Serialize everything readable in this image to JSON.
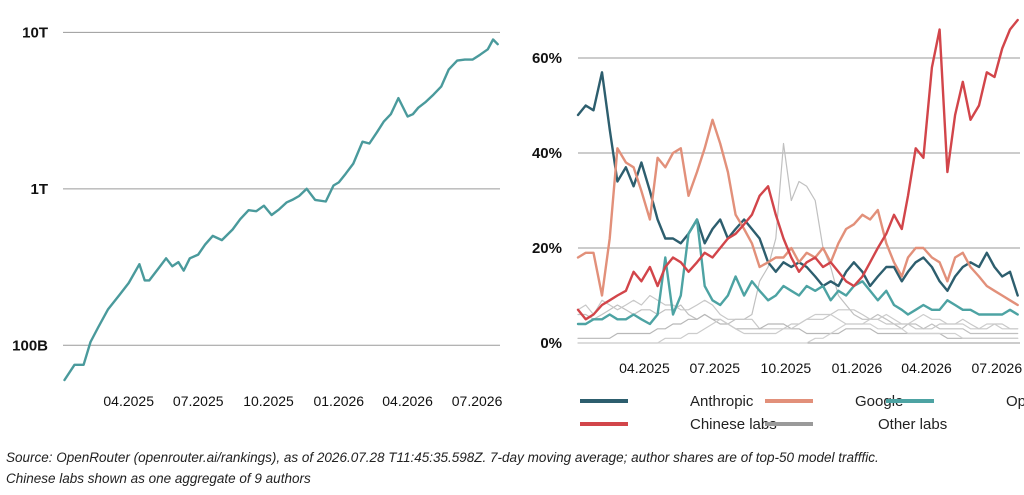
{
  "source_note": {
    "line1": "Source: OpenRouter (openrouter.ai/rankings), as of 2026.07.28 T11:45:35.598Z. 7-day moving average; author shares are of top-50 model trafffic.",
    "line2": "Chinese labs shown as one aggregate of 9 authors"
  },
  "chart_data": [
    {
      "type": "line",
      "title": "",
      "xlabel": "",
      "ylabel": "",
      "yscale": "log",
      "ylim": [
        60000000000,
        12000000000000
      ],
      "yticks": [
        {
          "value": 100000000000,
          "label": "100B"
        },
        {
          "value": 1000000000000,
          "label": "1T"
        },
        {
          "value": 10000000000000,
          "label": "10T"
        }
      ],
      "xlim": [
        "2025-01-05",
        "2026-07-31"
      ],
      "xticks": [
        {
          "value": "2025-04-01",
          "label": "04.2025"
        },
        {
          "value": "2025-07-01",
          "label": "07.2025"
        },
        {
          "value": "2025-10-01",
          "label": "10.2025"
        },
        {
          "value": "2026-01-01",
          "label": "01.2026"
        },
        {
          "value": "2026-04-01",
          "label": "04.2026"
        },
        {
          "value": "2026-07-01",
          "label": "07.2026"
        }
      ],
      "grid": true,
      "color": "#4a9a9c",
      "x": [
        "2025-01-07",
        "2025-01-20",
        "2025-02-01",
        "2025-02-10",
        "2025-02-20",
        "2025-03-05",
        "2025-03-20",
        "2025-04-01",
        "2025-04-15",
        "2025-04-22",
        "2025-04-28",
        "2025-05-10",
        "2025-05-20",
        "2025-05-28",
        "2025-06-05",
        "2025-06-12",
        "2025-06-20",
        "2025-07-01",
        "2025-07-10",
        "2025-07-20",
        "2025-08-01",
        "2025-08-15",
        "2025-08-25",
        "2025-09-05",
        "2025-09-15",
        "2025-09-25",
        "2025-10-05",
        "2025-10-15",
        "2025-10-25",
        "2025-11-01",
        "2025-11-10",
        "2025-11-20",
        "2025-12-01",
        "2025-12-15",
        "2025-12-25",
        "2026-01-01",
        "2026-01-10",
        "2026-01-20",
        "2026-02-01",
        "2026-02-10",
        "2026-02-20",
        "2026-03-01",
        "2026-03-10",
        "2026-03-20",
        "2026-04-01",
        "2026-04-08",
        "2026-04-15",
        "2026-04-25",
        "2026-05-05",
        "2026-05-15",
        "2026-05-25",
        "2026-06-05",
        "2026-06-15",
        "2026-06-25",
        "2026-07-05",
        "2026-07-15",
        "2026-07-22",
        "2026-07-28"
      ],
      "values": [
        60000000000,
        75000000000,
        75000000000,
        105000000000,
        130000000000,
        170000000000,
        210000000000,
        250000000000,
        330000000000,
        260000000000,
        260000000000,
        310000000000,
        360000000000,
        320000000000,
        340000000000,
        300000000000,
        360000000000,
        380000000000,
        440000000000,
        500000000000,
        470000000000,
        550000000000,
        640000000000,
        730000000000,
        720000000000,
        780000000000,
        680000000000,
        740000000000,
        820000000000,
        850000000000,
        900000000000,
        1000000000000,
        850000000000,
        830000000000,
        1050000000000,
        1100000000000,
        1250000000000,
        1450000000000,
        2000000000000,
        1950000000000,
        2300000000000,
        2700000000000,
        3000000000000,
        3800000000000,
        2900000000000,
        3000000000000,
        3300000000000,
        3600000000000,
        4000000000000,
        4500000000000,
        5800000000000,
        6600000000000,
        6700000000000,
        6700000000000,
        7200000000000,
        7800000000000,
        9000000000000,
        8400000000000
      ]
    },
    {
      "type": "line",
      "title": "",
      "xlabel": "",
      "ylabel": "",
      "ylim": [
        0,
        68
      ],
      "yticks": [
        {
          "value": 0,
          "label": "0%"
        },
        {
          "value": 20,
          "label": "20%"
        },
        {
          "value": 40,
          "label": "40%"
        },
        {
          "value": 60,
          "label": "60%"
        }
      ],
      "xlim": [
        "2025-01-05",
        "2026-07-31"
      ],
      "xticks": [
        {
          "value": "2025-04-01",
          "label": "04.2025"
        },
        {
          "value": "2025-07-01",
          "label": "07.2025"
        },
        {
          "value": "2025-10-01",
          "label": "10.2025"
        },
        {
          "value": "2026-01-01",
          "label": "01.2026"
        },
        {
          "value": "2026-04-01",
          "label": "04.2026"
        },
        {
          "value": "2026-07-01",
          "label": "07.2026"
        }
      ],
      "grid": true,
      "legend": {
        "placement": "bottom",
        "entries": [
          {
            "name": "Anthropic",
            "color": "#2d5e6e"
          },
          {
            "name": "Google",
            "color": "#e2907a"
          },
          {
            "name": "OpenAI",
            "color": "#4da3a3"
          },
          {
            "name": "Chinese labs",
            "color": "#d2454a"
          },
          {
            "name": "Other labs",
            "color": "#9a9a9a"
          }
        ]
      },
      "x": [
        "2025-01-05",
        "2025-01-15",
        "2025-01-25",
        "2025-02-05",
        "2025-02-15",
        "2025-02-25",
        "2025-03-08",
        "2025-03-18",
        "2025-03-28",
        "2025-04-08",
        "2025-04-18",
        "2025-04-28",
        "2025-05-08",
        "2025-05-18",
        "2025-05-28",
        "2025-06-08",
        "2025-06-18",
        "2025-06-28",
        "2025-07-08",
        "2025-07-18",
        "2025-07-28",
        "2025-08-08",
        "2025-08-18",
        "2025-08-28",
        "2025-09-08",
        "2025-09-18",
        "2025-09-28",
        "2025-10-08",
        "2025-10-18",
        "2025-10-28",
        "2025-11-08",
        "2025-11-18",
        "2025-11-28",
        "2025-12-08",
        "2025-12-18",
        "2025-12-28",
        "2026-01-08",
        "2026-01-18",
        "2026-01-28",
        "2026-02-08",
        "2026-02-18",
        "2026-02-28",
        "2026-03-08",
        "2026-03-18",
        "2026-03-28",
        "2026-04-08",
        "2026-04-18",
        "2026-04-28",
        "2026-05-08",
        "2026-05-18",
        "2026-05-28",
        "2026-06-08",
        "2026-06-18",
        "2026-06-28",
        "2026-07-08",
        "2026-07-18",
        "2026-07-28"
      ],
      "series": [
        {
          "name": "Anthropic",
          "color": "#2d5e6e",
          "values": [
            48,
            50,
            49,
            57,
            45,
            34,
            37,
            33,
            38,
            32,
            26,
            22,
            22,
            21,
            23,
            26,
            21,
            24,
            26,
            22,
            24,
            26,
            24,
            22,
            17,
            15,
            17,
            16,
            17,
            16,
            14,
            12,
            13,
            12,
            15,
            17,
            15,
            12,
            14,
            16,
            16,
            13,
            15,
            17,
            18,
            16,
            13,
            11,
            14,
            16,
            17,
            16,
            19,
            16,
            14,
            15,
            10
          ]
        },
        {
          "name": "Google",
          "color": "#e2907a",
          "values": [
            18,
            19,
            19,
            10,
            22,
            41,
            38,
            37,
            32,
            26,
            39,
            37,
            40,
            41,
            31,
            36,
            41,
            47,
            42,
            36,
            27,
            24,
            21,
            16,
            17,
            18,
            18,
            20,
            17,
            19,
            18,
            20,
            17,
            21,
            24,
            25,
            27,
            26,
            28,
            21,
            17,
            14,
            18,
            20,
            20,
            18,
            17,
            13,
            18,
            19,
            16,
            14,
            12,
            11,
            10,
            9,
            8
          ]
        },
        {
          "name": "OpenAI",
          "color": "#4da3a3",
          "values": [
            4,
            4,
            5,
            5,
            6,
            5,
            5,
            6,
            5,
            4,
            6,
            18,
            6,
            10,
            23,
            26,
            12,
            9,
            8,
            10,
            14,
            10,
            13,
            11,
            9,
            10,
            12,
            11,
            10,
            12,
            11,
            12,
            9,
            11,
            10,
            12,
            13,
            11,
            9,
            11,
            8,
            7,
            6,
            7,
            8,
            7,
            7,
            9,
            8,
            7,
            7,
            6,
            6,
            6,
            6,
            7,
            6
          ]
        },
        {
          "name": "Chinese labs",
          "color": "#d2454a",
          "values": [
            7,
            5,
            6,
            8,
            9,
            10,
            11,
            15,
            13,
            16,
            12,
            16,
            18,
            17,
            15,
            17,
            19,
            18,
            20,
            22,
            23,
            25,
            27,
            31,
            33,
            27,
            22,
            18,
            15,
            17,
            18,
            16,
            17,
            15,
            13,
            12,
            14,
            17,
            20,
            23,
            27,
            24,
            31,
            41,
            39,
            58,
            66,
            36,
            48,
            55,
            47,
            50,
            57,
            56,
            62,
            66,
            68
          ]
        },
        {
          "name": "Other labs 1",
          "color": "#c0c0c0",
          "values": [
            6,
            6,
            5,
            6,
            7,
            8,
            7,
            6,
            7,
            7,
            6,
            7,
            7,
            8,
            6,
            5,
            6,
            5,
            5,
            4,
            5,
            5,
            6,
            13,
            16,
            22,
            42,
            30,
            34,
            33,
            30,
            20,
            16,
            10,
            8,
            6,
            5,
            5,
            6,
            5,
            4,
            3,
            4,
            4,
            3,
            4,
            3,
            3,
            3,
            3,
            2,
            2,
            2,
            2,
            2,
            2,
            2
          ]
        },
        {
          "name": "Other labs 2",
          "color": "#c8c8c8",
          "values": [
            7,
            8,
            6,
            9,
            8,
            7,
            8,
            9,
            8,
            10,
            9,
            8,
            8,
            7,
            7,
            8,
            9,
            8,
            6,
            5,
            5,
            5,
            5,
            3,
            3,
            3,
            3,
            4,
            4,
            5,
            5,
            5,
            6,
            7,
            7,
            7,
            6,
            5,
            5,
            4,
            4,
            4,
            4,
            3,
            3,
            3,
            4,
            4,
            4,
            5,
            4,
            3,
            3,
            4,
            4,
            3,
            3
          ]
        },
        {
          "name": "Other labs 3",
          "color": "#b8b8b8",
          "values": [
            1,
            1,
            1,
            1,
            1,
            2,
            2,
            2,
            2,
            2,
            3,
            3,
            4,
            4,
            5,
            5,
            6,
            5,
            4,
            4,
            3,
            3,
            3,
            3,
            4,
            4,
            4,
            3,
            3,
            2,
            2,
            2,
            2,
            2,
            3,
            3,
            3,
            3,
            2,
            2,
            2,
            2,
            2,
            2,
            2,
            2,
            2,
            1,
            1,
            1,
            1,
            1,
            1,
            1,
            1,
            1,
            1
          ]
        },
        {
          "name": "Other labs 4",
          "color": "#cccccc",
          "values": [
            0,
            0,
            0,
            0,
            0,
            0,
            0,
            0,
            0,
            0,
            0,
            1,
            1,
            1,
            2,
            2,
            3,
            4,
            5,
            4,
            3,
            2,
            2,
            2,
            2,
            2,
            3,
            3,
            4,
            5,
            6,
            6,
            6,
            5,
            4,
            4,
            4,
            5,
            5,
            6,
            5,
            4,
            4,
            5,
            6,
            5,
            5,
            4,
            4,
            4,
            3,
            3,
            4,
            4,
            3,
            3,
            3
          ]
        },
        {
          "name": "Other labs 5",
          "color": "#d0d0d0",
          "values": [
            0,
            0,
            0,
            0,
            0,
            0,
            0,
            0,
            0,
            0,
            0,
            0,
            0,
            0,
            0,
            0,
            0,
            0,
            0,
            0,
            0,
            0,
            0,
            0,
            0,
            0,
            0,
            0,
            0,
            0,
            1,
            1,
            2,
            3,
            4,
            4,
            4,
            4,
            3,
            3,
            3,
            3,
            2,
            2,
            2,
            2,
            2,
            2,
            2,
            1,
            1,
            1,
            1,
            1,
            1,
            1,
            1
          ]
        }
      ]
    }
  ]
}
